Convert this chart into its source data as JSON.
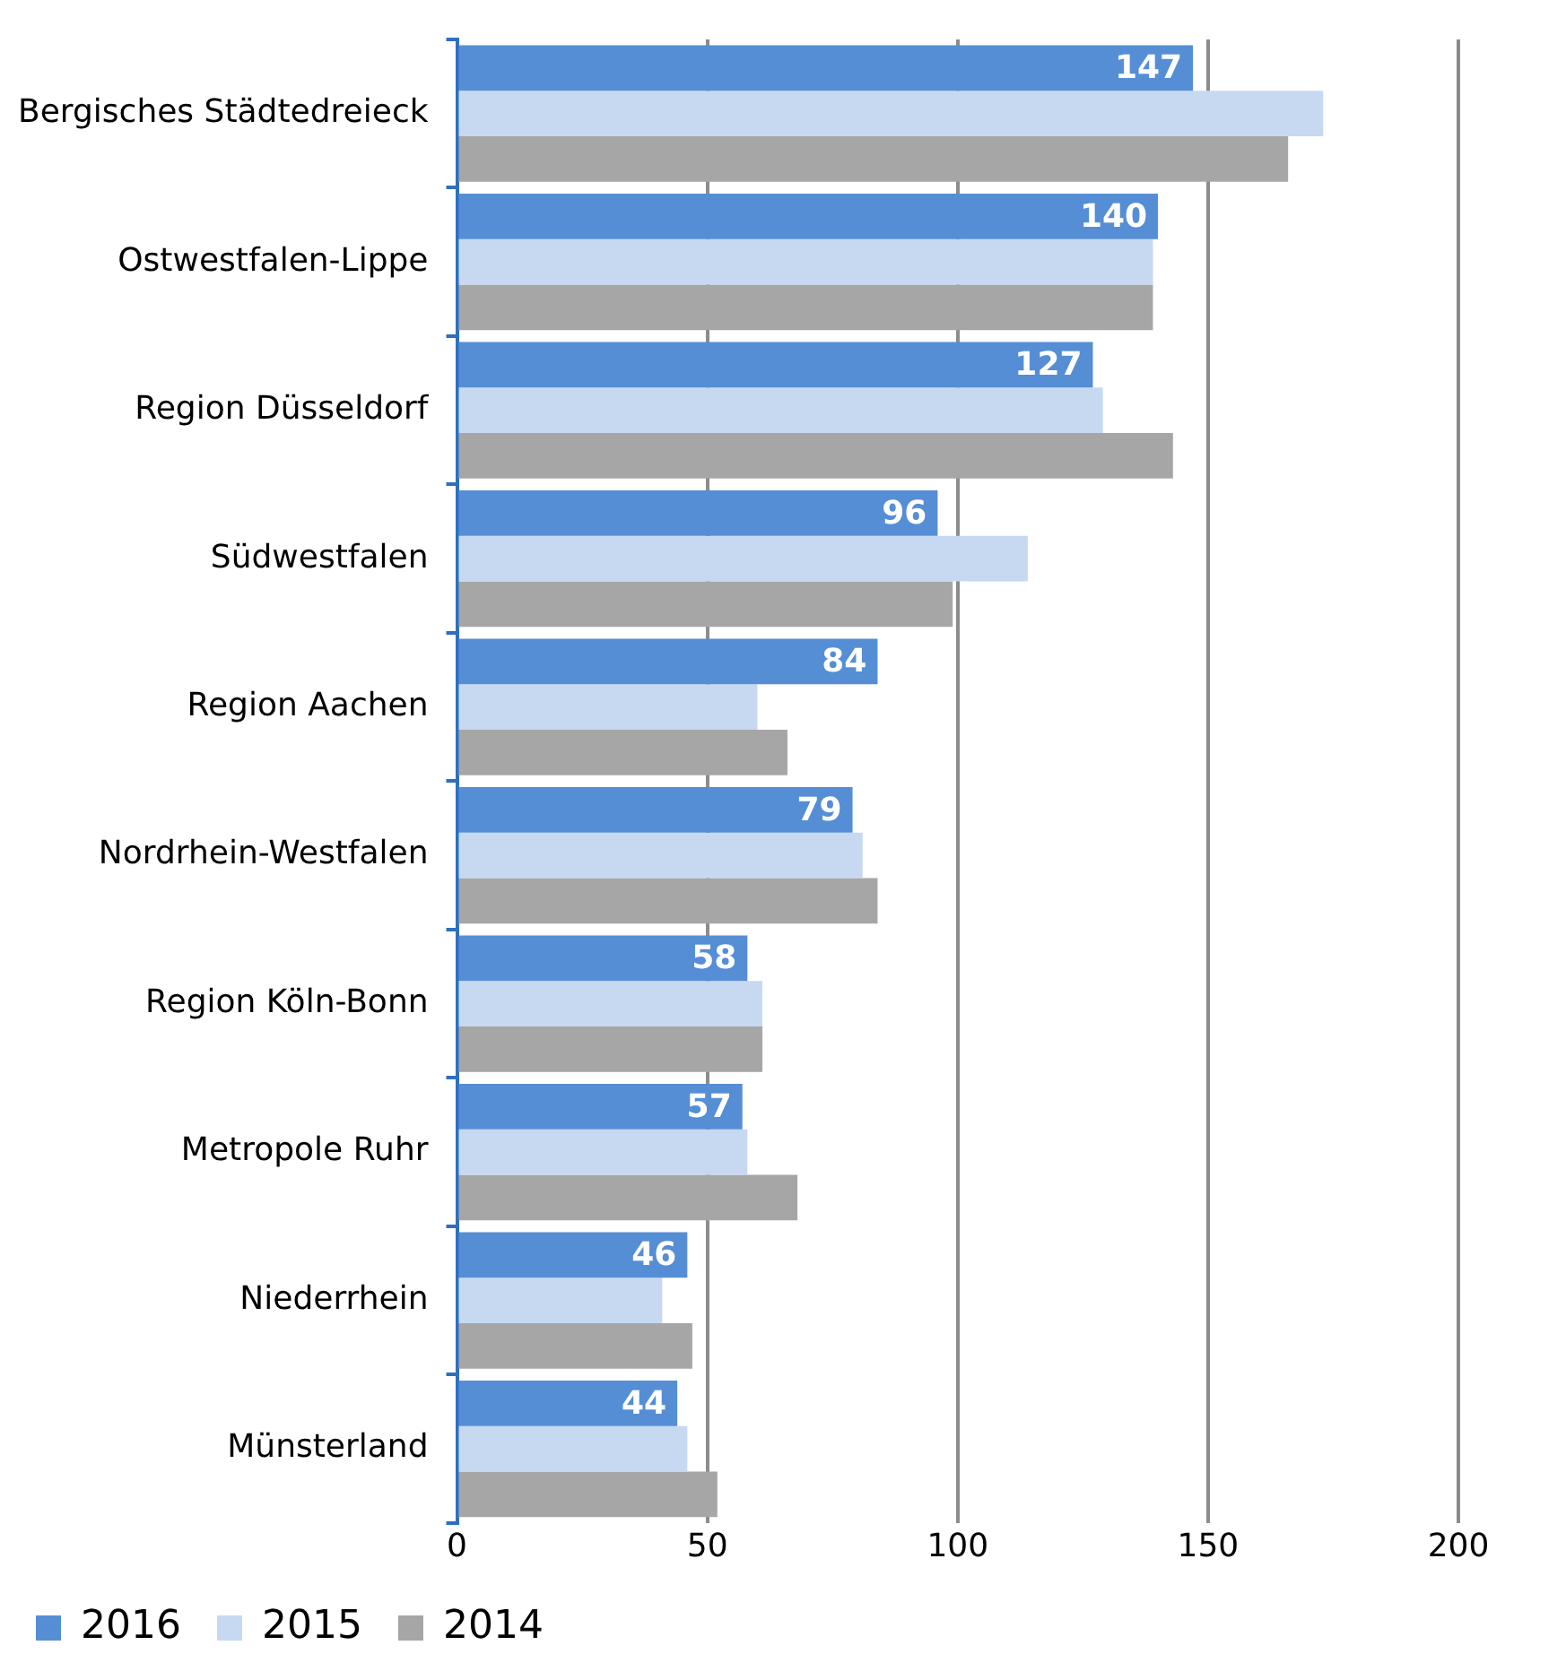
{
  "chart_data": {
    "type": "bar",
    "orientation": "horizontal",
    "categories": [
      "Bergisches Städtedreieck",
      "Ostwestfalen-Lippe",
      "Region Düsseldorf",
      "Südwestfalen",
      "Region Aachen",
      "Nordrhein-Westfalen",
      "Region Köln-Bonn",
      "Metropole Ruhr",
      "Niederrhein",
      "Münsterland"
    ],
    "series": [
      {
        "name": "2016",
        "color": "#558ed5",
        "values": [
          147,
          140,
          127,
          96,
          84,
          79,
          58,
          57,
          46,
          44
        ],
        "value_labels": [
          "147",
          "140",
          "127",
          "96",
          "84",
          "79",
          "58",
          "57",
          "46",
          "44"
        ]
      },
      {
        "name": "2015",
        "color": "#c6d9f1",
        "values": [
          173,
          139,
          129,
          114,
          60,
          81,
          61,
          58,
          41,
          46
        ]
      },
      {
        "name": "2014",
        "color": "#a6a6a6",
        "values": [
          166,
          139,
          143,
          99,
          66,
          84,
          61,
          68,
          47,
          52
        ]
      }
    ],
    "xlim": [
      0,
      200
    ],
    "xticks": [
      0,
      50,
      100,
      150,
      200
    ],
    "grid": "x",
    "legend": "bottom left"
  }
}
